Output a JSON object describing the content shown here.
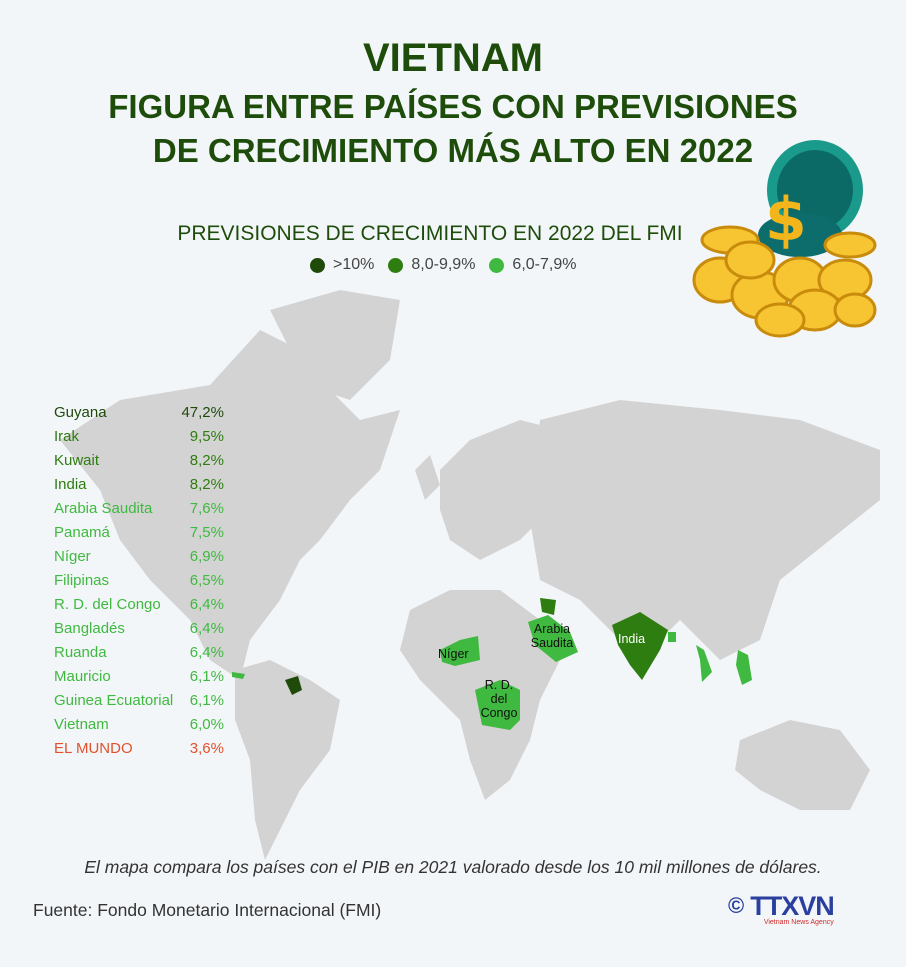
{
  "header": {
    "title": "VIETNAM",
    "subtitle_line1": "FIGURA ENTRE PAÍSES CON PREVISIONES",
    "subtitle_line2": "DE CRECIMIENTO MÁS ALTO EN 2022"
  },
  "chart_data": {
    "type": "table",
    "title": "PREVISIONES DE CRECIMIENTO EN 2022 DEL FMI",
    "legend": [
      {
        "label": ">10%",
        "color": "#1f4a0a"
      },
      {
        "label": "8,0-9,9%",
        "color": "#2e7d10"
      },
      {
        "label": "6,0-7,9%",
        "color": "#3fb93f"
      }
    ],
    "rows": [
      {
        "country": "Guyana",
        "value": "47,2%",
        "color": "#1f4a0a"
      },
      {
        "country": "Irak",
        "value": "9,5%",
        "color": "#2e7d10"
      },
      {
        "country": "Kuwait",
        "value": "8,2%",
        "color": "#2e7d10"
      },
      {
        "country": "India",
        "value": "8,2%",
        "color": "#2e7d10"
      },
      {
        "country": "Arabia Saudita",
        "value": "7,6%",
        "color": "#3fb93f"
      },
      {
        "country": "Panamá",
        "value": "7,5%",
        "color": "#3fb93f"
      },
      {
        "country": "Níger",
        "value": "6,9%",
        "color": "#3fb93f"
      },
      {
        "country": "Filipinas",
        "value": "6,5%",
        "color": "#3fb93f"
      },
      {
        "country": "R. D. del Congo",
        "value": "6,4%",
        "color": "#3fb93f"
      },
      {
        "country": "Bangladés",
        "value": "6,4%",
        "color": "#3fb93f"
      },
      {
        "country": "Ruanda",
        "value": "6,4%",
        "color": "#3fb93f"
      },
      {
        "country": "Mauricio",
        "value": "6,1%",
        "color": "#3fb93f"
      },
      {
        "country": "Guinea Ecuatorial",
        "value": "6,1%",
        "color": "#3fb93f"
      },
      {
        "country": "Vietnam",
        "value": "6,0%",
        "color": "#3fb93f"
      },
      {
        "country": "EL MUNDO",
        "value": "3,6%",
        "color": "#e0522e"
      }
    ]
  },
  "map_labels": {
    "niger": "Níger",
    "saudi": "Arabia Saudita",
    "india": "India",
    "congo": "R. D. del Congo"
  },
  "footer": {
    "note": "El mapa compara los países con el PIB en 2021 valorado desde los 10 mil millones de dólares.",
    "source": "Fuente: Fondo Monetario Internacional (FMI)",
    "copyright": "©",
    "logo": "TTXVN",
    "logo_tagline": "Vietnam News Agency"
  }
}
